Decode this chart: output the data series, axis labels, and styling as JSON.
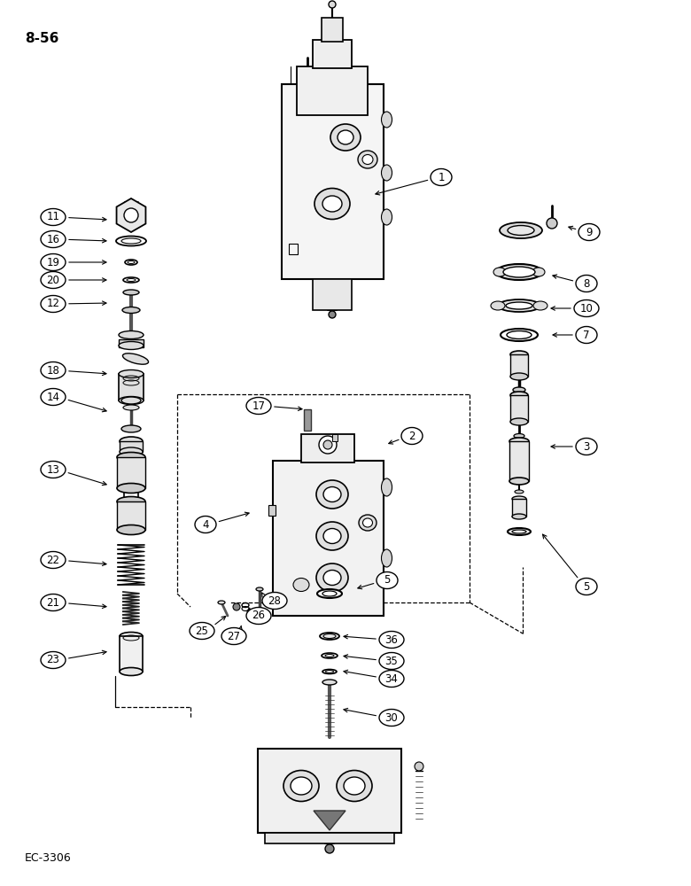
{
  "page_label": "8-56",
  "doc_label": "EC-3306",
  "background_color": "#ffffff",
  "lc": "#000000",
  "gray": "#888888",
  "lightgray": "#cccccc",
  "darkgray": "#444444"
}
